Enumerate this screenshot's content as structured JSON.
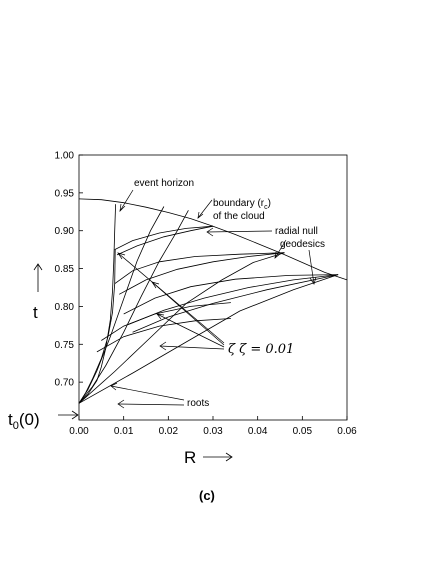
{
  "chart_data": {
    "type": "line",
    "xlabel": "R",
    "ylabel": "t",
    "xlim": [
      0,
      0.06
    ],
    "ylim": [
      0.65,
      1.0
    ],
    "x_ticks": [
      "0.00",
      "0.01",
      "0.02",
      "0.03",
      "0.04",
      "0.05",
      "0.06"
    ],
    "y_ticks": [
      "1.00",
      "0.95",
      "0.90",
      "0.85",
      "0.80",
      "0.75",
      "0.70"
    ],
    "y_origin_label": "t",
    "y_origin_label_sub": "0",
    "y_origin_label_tail": "(0)",
    "y_origin_value": 0.672,
    "panel_label": "(c)",
    "grid": false,
    "annotations": {
      "event_horizon": "event horizon",
      "boundary_line1": "boundary (r",
      "boundary_sub": "c",
      "boundary_close": ")",
      "boundary_line2": "of the cloud",
      "radial_line1": "radial null",
      "radial_line2": "geodesics",
      "zeta": "ζ ζ = 0.01",
      "roots": "roots"
    },
    "series": [
      {
        "points": [
          [
            0,
            0.942
          ],
          [
            0.005,
            0.941
          ],
          [
            0.01,
            0.937
          ],
          [
            0.015,
            0.931
          ],
          [
            0.02,
            0.924
          ],
          [
            0.025,
            0.916
          ],
          [
            0.03,
            0.906
          ],
          [
            0.035,
            0.895
          ],
          [
            0.04,
            0.883
          ],
          [
            0.045,
            0.871
          ],
          [
            0.05,
            0.858
          ],
          [
            0.055,
            0.845
          ],
          [
            0.06,
            0.835
          ]
        ]
      },
      {
        "points": [
          [
            0,
            0.672
          ],
          [
            0.002,
            0.684
          ],
          [
            0.004,
            0.702
          ],
          [
            0.005,
            0.72
          ],
          [
            0.006,
            0.745
          ],
          [
            0.007,
            0.782
          ],
          [
            0.0075,
            0.82
          ],
          [
            0.0078,
            0.86
          ],
          [
            0.008,
            0.9
          ],
          [
            0.0082,
            0.935
          ]
        ]
      },
      {
        "points": [
          [
            0,
            0.672
          ],
          [
            0.0015,
            0.686
          ],
          [
            0.003,
            0.704
          ],
          [
            0.005,
            0.731
          ],
          [
            0.0065,
            0.76
          ],
          [
            0.0075,
            0.792
          ],
          [
            0.008,
            0.83
          ],
          [
            0.0081,
            0.875
          ]
        ]
      },
      {
        "points": [
          [
            0,
            0.672
          ],
          [
            0.002,
            0.69
          ],
          [
            0.004,
            0.715
          ],
          [
            0.007,
            0.76
          ],
          [
            0.01,
            0.81
          ],
          [
            0.013,
            0.86
          ],
          [
            0.016,
            0.9
          ],
          [
            0.019,
            0.932
          ]
        ]
      },
      {
        "points": [
          [
            0,
            0.672
          ],
          [
            0.003,
            0.694
          ],
          [
            0.006,
            0.722
          ],
          [
            0.01,
            0.766
          ],
          [
            0.014,
            0.814
          ],
          [
            0.018,
            0.86
          ],
          [
            0.022,
            0.9
          ],
          [
            0.0245,
            0.927
          ]
        ]
      },
      {
        "points": [
          [
            0,
            0.672
          ],
          [
            0.008,
            0.714
          ],
          [
            0.016,
            0.759
          ],
          [
            0.024,
            0.804
          ],
          [
            0.032,
            0.835
          ],
          [
            0.039,
            0.858
          ],
          [
            0.046,
            0.871
          ]
        ]
      },
      {
        "points": [
          [
            0,
            0.672
          ],
          [
            0.012,
            0.712
          ],
          [
            0.024,
            0.753
          ],
          [
            0.036,
            0.794
          ],
          [
            0.048,
            0.822
          ],
          [
            0.058,
            0.842
          ]
        ]
      },
      {
        "points": [
          [
            0.008,
            0.875
          ],
          [
            0.012,
            0.887
          ],
          [
            0.018,
            0.897
          ],
          [
            0.024,
            0.903
          ],
          [
            0.03,
            0.906
          ]
        ]
      },
      {
        "points": [
          [
            0.0085,
            0.868
          ],
          [
            0.013,
            0.88
          ],
          [
            0.019,
            0.892
          ],
          [
            0.025,
            0.9
          ],
          [
            0.03,
            0.906
          ]
        ]
      },
      {
        "points": [
          [
            0.008,
            0.83
          ],
          [
            0.012,
            0.847
          ],
          [
            0.018,
            0.859
          ],
          [
            0.026,
            0.866
          ],
          [
            0.036,
            0.869
          ],
          [
            0.046,
            0.871
          ]
        ]
      },
      {
        "points": [
          [
            0.009,
            0.816
          ],
          [
            0.015,
            0.835
          ],
          [
            0.022,
            0.849
          ],
          [
            0.03,
            0.859
          ],
          [
            0.038,
            0.866
          ],
          [
            0.046,
            0.871
          ]
        ]
      },
      {
        "points": [
          [
            0.01,
            0.79
          ],
          [
            0.017,
            0.811
          ],
          [
            0.025,
            0.826
          ],
          [
            0.035,
            0.836
          ],
          [
            0.047,
            0.841
          ],
          [
            0.058,
            0.842
          ]
        ]
      },
      {
        "points": [
          [
            0.011,
            0.776
          ],
          [
            0.019,
            0.795
          ],
          [
            0.028,
            0.811
          ],
          [
            0.038,
            0.825
          ],
          [
            0.048,
            0.835
          ],
          [
            0.058,
            0.842
          ]
        ]
      },
      {
        "points": [
          [
            0.012,
            0.766
          ],
          [
            0.02,
            0.786
          ],
          [
            0.03,
            0.804
          ],
          [
            0.042,
            0.822
          ],
          [
            0.058,
            0.842
          ]
        ]
      },
      {
        "points": [
          [
            0.005,
            0.755
          ],
          [
            0.01,
            0.774
          ],
          [
            0.017,
            0.79
          ],
          [
            0.025,
            0.8
          ],
          [
            0.034,
            0.805
          ]
        ]
      },
      {
        "points": [
          [
            0.004,
            0.74
          ],
          [
            0.01,
            0.76
          ],
          [
            0.018,
            0.774
          ],
          [
            0.026,
            0.781
          ],
          [
            0.034,
            0.784
          ]
        ]
      }
    ]
  }
}
